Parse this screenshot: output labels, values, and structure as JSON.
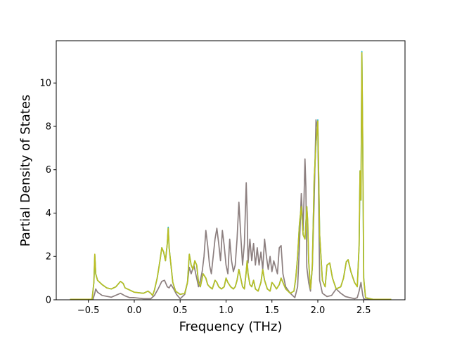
{
  "chart_data": {
    "type": "line",
    "title": "",
    "xlabel": "Frequency (THz)",
    "ylabel": "Partial Density of States",
    "xlim": [
      -0.85,
      2.95
    ],
    "ylim": [
      0,
      11.95
    ],
    "xticks": [
      -0.5,
      0.0,
      0.5,
      1.0,
      1.5,
      2.0,
      2.5
    ],
    "xtick_labels": [
      "−0.5",
      "0.0",
      "0.5",
      "1.0",
      "1.5",
      "2.0",
      "2.5"
    ],
    "yticks": [
      0,
      2,
      4,
      6,
      8,
      10
    ],
    "ytick_labels": [
      "0",
      "2",
      "4",
      "6",
      "8",
      "10"
    ],
    "grid": false,
    "legend": "none",
    "series": [
      {
        "color": "#8c7f7f",
        "x": [
          -0.7,
          -0.45,
          -0.43,
          -0.42,
          -0.4,
          -0.35,
          -0.25,
          -0.15,
          -0.1,
          -0.05,
          0.0,
          0.1,
          0.18,
          0.22,
          0.26,
          0.3,
          0.33,
          0.36,
          0.38,
          0.4,
          0.43,
          0.46,
          0.5,
          0.55,
          0.58,
          0.6,
          0.62,
          0.65,
          0.68,
          0.7,
          0.72,
          0.74,
          0.76,
          0.78,
          0.8,
          0.82,
          0.84,
          0.86,
          0.88,
          0.9,
          0.92,
          0.94,
          0.96,
          0.98,
          1.0,
          1.02,
          1.04,
          1.06,
          1.08,
          1.1,
          1.12,
          1.14,
          1.16,
          1.18,
          1.2,
          1.22,
          1.23,
          1.24,
          1.26,
          1.28,
          1.3,
          1.32,
          1.34,
          1.36,
          1.38,
          1.4,
          1.42,
          1.44,
          1.46,
          1.48,
          1.5,
          1.52,
          1.54,
          1.56,
          1.58,
          1.6,
          1.62,
          1.65,
          1.7,
          1.75,
          1.78,
          1.8,
          1.82,
          1.84,
          1.85,
          1.86,
          1.87,
          1.88,
          1.9,
          1.92,
          1.94,
          1.96,
          1.98,
          2.0,
          2.02,
          2.05,
          2.1,
          2.15,
          2.2,
          2.25,
          2.3,
          2.35,
          2.4,
          2.43,
          2.45,
          2.47,
          2.48,
          2.49,
          2.5,
          2.52,
          2.6,
          2.8
        ],
        "y": [
          0.02,
          0.02,
          0.3,
          0.5,
          0.35,
          0.2,
          0.12,
          0.3,
          0.18,
          0.1,
          0.1,
          0.05,
          0.05,
          0.2,
          0.5,
          0.85,
          0.9,
          0.6,
          0.55,
          0.7,
          0.5,
          0.25,
          0.05,
          0.25,
          0.8,
          1.5,
          1.2,
          1.6,
          1.0,
          0.6,
          0.9,
          1.3,
          2.0,
          3.2,
          2.5,
          1.6,
          1.2,
          2.0,
          2.8,
          3.3,
          2.6,
          1.8,
          3.2,
          2.5,
          1.6,
          1.2,
          2.8,
          1.8,
          1.3,
          1.6,
          2.8,
          4.5,
          3.0,
          1.6,
          2.6,
          5.4,
          4.0,
          1.7,
          2.8,
          1.8,
          2.6,
          1.6,
          2.4,
          1.6,
          2.2,
          1.4,
          2.8,
          2.0,
          1.4,
          2.0,
          1.3,
          1.8,
          1.5,
          1.2,
          2.4,
          2.5,
          1.2,
          0.6,
          0.3,
          0.1,
          0.6,
          2.5,
          4.9,
          3.2,
          4.7,
          6.5,
          5.2,
          1.5,
          0.8,
          0.4,
          1.5,
          4.5,
          8.3,
          7.8,
          0.9,
          0.3,
          0.15,
          0.2,
          0.5,
          0.3,
          0.15,
          0.1,
          0.05,
          0.1,
          0.4,
          0.8,
          0.5,
          0.2,
          0.05,
          0.02,
          0.02,
          0.02
        ]
      },
      {
        "color": "#17becf",
        "x": [
          -0.7,
          -0.46,
          -0.44,
          -0.43,
          -0.42,
          -0.4,
          -0.35,
          -0.3,
          -0.25,
          -0.2,
          -0.15,
          -0.12,
          -0.1,
          -0.05,
          0.0,
          0.1,
          0.15,
          0.18,
          0.2,
          0.22,
          0.25,
          0.28,
          0.3,
          0.32,
          0.34,
          0.36,
          0.37,
          0.38,
          0.4,
          0.42,
          0.45,
          0.5,
          0.55,
          0.58,
          0.6,
          0.62,
          0.64,
          0.66,
          0.68,
          0.7,
          0.72,
          0.75,
          0.78,
          0.8,
          0.82,
          0.85,
          0.88,
          0.9,
          0.92,
          0.95,
          0.98,
          1.0,
          1.02,
          1.05,
          1.08,
          1.1,
          1.12,
          1.14,
          1.16,
          1.18,
          1.2,
          1.22,
          1.23,
          1.24,
          1.26,
          1.28,
          1.3,
          1.32,
          1.35,
          1.38,
          1.4,
          1.42,
          1.45,
          1.48,
          1.5,
          1.52,
          1.55,
          1.58,
          1.6,
          1.65,
          1.7,
          1.74,
          1.76,
          1.78,
          1.8,
          1.82,
          1.84,
          1.86,
          1.88,
          1.89,
          1.9,
          1.92,
          1.94,
          1.96,
          1.98,
          2.0,
          2.02,
          2.05,
          2.08,
          2.1,
          2.13,
          2.16,
          2.2,
          2.25,
          2.28,
          2.31,
          2.33,
          2.36,
          2.4,
          2.43,
          2.45,
          2.46,
          2.47,
          2.48,
          2.49,
          2.5,
          2.52,
          2.6,
          2.8
        ],
        "y": [
          0.02,
          0.02,
          0.8,
          2.05,
          1.2,
          0.9,
          0.7,
          0.55,
          0.5,
          0.6,
          0.85,
          0.75,
          0.55,
          0.45,
          0.35,
          0.3,
          0.4,
          0.3,
          0.2,
          0.45,
          1.0,
          1.8,
          2.4,
          2.2,
          1.8,
          2.6,
          3.35,
          2.4,
          1.6,
          0.8,
          0.4,
          0.25,
          0.3,
          0.8,
          2.1,
          1.6,
          1.4,
          1.8,
          1.6,
          0.8,
          0.6,
          1.2,
          1.0,
          0.7,
          0.6,
          0.5,
          0.9,
          0.8,
          0.6,
          0.5,
          0.6,
          1.0,
          0.8,
          0.6,
          0.5,
          0.6,
          0.9,
          1.4,
          1.0,
          0.6,
          0.5,
          1.3,
          1.8,
          1.2,
          0.7,
          0.6,
          0.9,
          0.5,
          0.4,
          0.8,
          1.4,
          0.9,
          0.5,
          0.4,
          0.8,
          0.7,
          0.5,
          0.7,
          1.0,
          0.5,
          0.3,
          0.4,
          1.0,
          2.0,
          3.5,
          4.3,
          3.0,
          2.8,
          4.3,
          3.6,
          1.8,
          0.5,
          1.5,
          5.5,
          7.2,
          8.3,
          3.0,
          0.9,
          0.6,
          1.6,
          1.7,
          1.0,
          0.5,
          0.6,
          1.0,
          1.75,
          1.85,
          1.3,
          0.8,
          0.6,
          2.5,
          5.95,
          4.6,
          11.45,
          7.0,
          1.0,
          0.1,
          0.02,
          0.02
        ]
      },
      {
        "color": "#bcbd22",
        "x": [
          -0.7,
          -0.46,
          -0.44,
          -0.43,
          -0.42,
          -0.4,
          -0.35,
          -0.3,
          -0.25,
          -0.2,
          -0.15,
          -0.12,
          -0.1,
          -0.05,
          0.0,
          0.1,
          0.15,
          0.18,
          0.2,
          0.22,
          0.25,
          0.28,
          0.3,
          0.32,
          0.34,
          0.36,
          0.37,
          0.38,
          0.4,
          0.42,
          0.45,
          0.5,
          0.55,
          0.58,
          0.6,
          0.62,
          0.64,
          0.66,
          0.68,
          0.7,
          0.72,
          0.75,
          0.78,
          0.8,
          0.82,
          0.85,
          0.88,
          0.9,
          0.92,
          0.95,
          0.98,
          1.0,
          1.02,
          1.05,
          1.08,
          1.1,
          1.12,
          1.14,
          1.16,
          1.18,
          1.2,
          1.22,
          1.23,
          1.24,
          1.26,
          1.28,
          1.3,
          1.32,
          1.35,
          1.38,
          1.4,
          1.42,
          1.45,
          1.48,
          1.5,
          1.52,
          1.55,
          1.58,
          1.6,
          1.65,
          1.7,
          1.74,
          1.76,
          1.78,
          1.8,
          1.82,
          1.84,
          1.86,
          1.88,
          1.89,
          1.9,
          1.92,
          1.94,
          1.96,
          1.98,
          2.0,
          2.02,
          2.05,
          2.08,
          2.1,
          2.13,
          2.16,
          2.2,
          2.25,
          2.28,
          2.31,
          2.33,
          2.36,
          2.4,
          2.43,
          2.45,
          2.46,
          2.47,
          2.48,
          2.49,
          2.5,
          2.52,
          2.6,
          2.8
        ],
        "y": [
          0.02,
          0.02,
          0.8,
          2.1,
          1.2,
          0.9,
          0.7,
          0.55,
          0.5,
          0.6,
          0.85,
          0.75,
          0.55,
          0.45,
          0.35,
          0.3,
          0.4,
          0.3,
          0.2,
          0.45,
          1.0,
          1.8,
          2.4,
          2.2,
          1.8,
          2.6,
          3.3,
          2.4,
          1.6,
          0.8,
          0.4,
          0.25,
          0.3,
          0.8,
          2.1,
          1.6,
          1.4,
          1.8,
          1.6,
          0.8,
          0.6,
          1.2,
          1.0,
          0.7,
          0.6,
          0.5,
          0.9,
          0.8,
          0.6,
          0.5,
          0.6,
          1.0,
          0.8,
          0.6,
          0.5,
          0.6,
          0.9,
          1.4,
          1.0,
          0.6,
          0.5,
          1.3,
          1.8,
          1.2,
          0.7,
          0.6,
          0.9,
          0.5,
          0.4,
          0.8,
          1.4,
          0.9,
          0.5,
          0.4,
          0.8,
          0.7,
          0.5,
          0.7,
          1.0,
          0.5,
          0.3,
          0.4,
          1.0,
          2.0,
          3.5,
          4.3,
          3.0,
          2.8,
          4.3,
          3.6,
          1.8,
          0.5,
          1.5,
          5.5,
          7.2,
          8.25,
          3.0,
          0.9,
          0.6,
          1.6,
          1.7,
          1.0,
          0.5,
          0.6,
          1.0,
          1.75,
          1.85,
          1.3,
          0.8,
          0.6,
          2.5,
          5.95,
          4.6,
          11.4,
          7.0,
          1.0,
          0.1,
          0.02,
          0.02
        ]
      }
    ]
  }
}
